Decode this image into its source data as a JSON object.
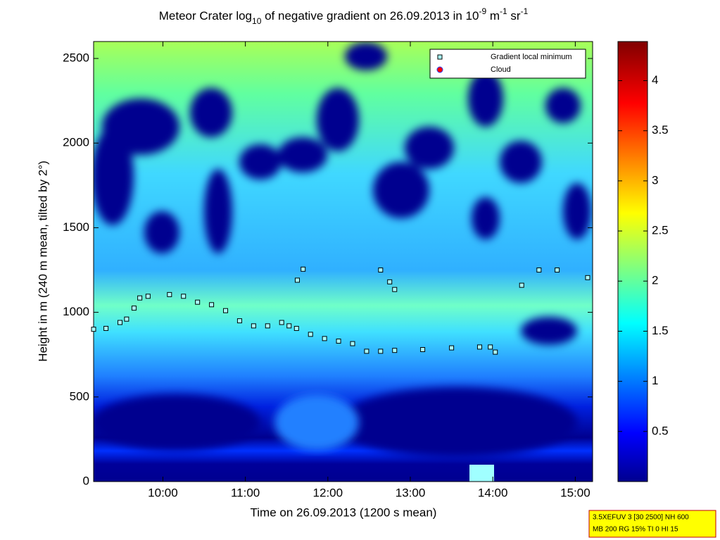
{
  "chart_data": {
    "type": "scatter",
    "title_parts": [
      "Meteor Crater log",
      "10",
      " of negative gradient on 26.09.2013 in 10",
      "-9",
      " m",
      "-1",
      " sr",
      "-1"
    ],
    "title_format": [
      "normal",
      "sub",
      "normal",
      "sup",
      "normal",
      "sup",
      "normal",
      "sup"
    ],
    "xlabel": "Time on 26.09.2013 (1200 s mean)",
    "ylabel": "Height in m (240 m mean, tilted by 2°)",
    "xlim": [
      9.16,
      15.21
    ],
    "xticks": [
      {
        "value": 10,
        "label": "10:00"
      },
      {
        "value": 11,
        "label": "11:00"
      },
      {
        "value": 12,
        "label": "12:00"
      },
      {
        "value": 13,
        "label": "13:00"
      },
      {
        "value": 14,
        "label": "14:00"
      },
      {
        "value": 15,
        "label": "15:00"
      }
    ],
    "ylim": [
      0,
      2600
    ],
    "yticks": [
      0,
      500,
      1000,
      1500,
      2000,
      2500
    ],
    "colorbar_lim": [
      0,
      4.39
    ],
    "colorbar_ticks": [
      0.5,
      1,
      1.5,
      2,
      2.5,
      3,
      3.5,
      4
    ],
    "legend": "upper right",
    "series": [
      {
        "name": "Gradient local minimum",
        "color": "#aaffff",
        "x": [
          9.16,
          9.31,
          9.48,
          9.56,
          9.65,
          9.72,
          9.82,
          10.08,
          10.25,
          10.42,
          10.59,
          10.76,
          10.93,
          11.1,
          11.27,
          11.44,
          11.53,
          11.62,
          11.79,
          11.96,
          12.13,
          12.3,
          12.47,
          12.64,
          12.81,
          13.15,
          13.5,
          13.84,
          13.97,
          14.03,
          11.63,
          11.7,
          12.64,
          12.75,
          12.81,
          14.35,
          14.56,
          14.78,
          15.15
        ],
        "values": [
          900,
          905,
          940,
          960,
          1025,
          1085,
          1095,
          1105,
          1095,
          1060,
          1045,
          1010,
          950,
          920,
          920,
          940,
          920,
          905,
          870,
          845,
          830,
          815,
          770,
          770,
          775,
          780,
          790,
          795,
          795,
          765,
          1190,
          1255,
          1250,
          1180,
          1135,
          1160,
          1250,
          1250,
          1205
        ]
      },
      {
        "name": "Cloud",
        "color": "#ff0000",
        "x": [],
        "values": []
      }
    ],
    "annotations": [
      "3.5XEFUV 3 [30 2500] NH 600",
      "MB 200 RG 15% TI 0 HI 15"
    ]
  }
}
